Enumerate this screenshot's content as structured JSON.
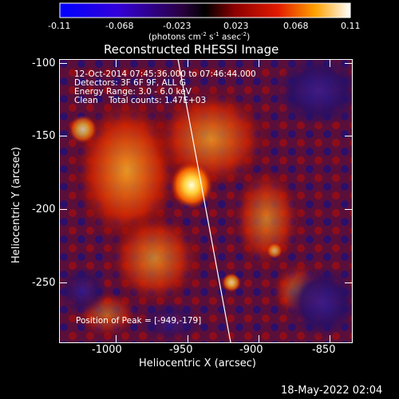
{
  "colorbar": {
    "tick_labels": [
      "-0.11",
      "-0.068",
      "-0.023",
      "0.023",
      "0.068",
      "0.11"
    ],
    "units_text": "(photons cm",
    "units_sup1": "-2",
    "units_mid": " s",
    "units_sup2": "-1",
    "units_mid2": " asec",
    "units_sup3": "-2",
    "units_end": ")"
  },
  "plot": {
    "title": "Reconstructed RHESSI Image",
    "xlabel": "Heliocentric X (arcsec)",
    "ylabel": "Heliocentric Y (arcsec)",
    "x_ticks": [
      "-1000",
      "-950",
      "-900",
      "-850"
    ],
    "y_ticks": [
      "-100",
      "-150",
      "-200",
      "-250"
    ],
    "info_lines": [
      "12-Oct-2014 07:45:36.000 to 07:46:44.000",
      "Detectors: 3F 6F 9F, ALL G",
      "Energy Range: 3.0 - 6.0 keV",
      "Clean    Total counts: 1.47E+03"
    ],
    "peak_label": "Position of Peak = [-949,-179]"
  },
  "footer": {
    "timestamp": "18-May-2022 02:04"
  }
}
